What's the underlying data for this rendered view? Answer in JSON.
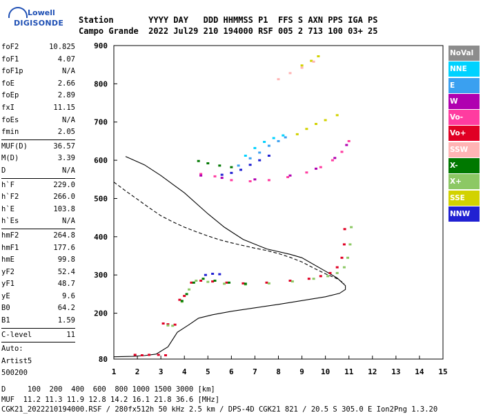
{
  "logo": {
    "line1": "Lowell",
    "line2": "DIGISONDE"
  },
  "header": {
    "line1": "Station       YYYY DAY   DDD HHMMSS P1  FFS S AXN PPS IGA PS",
    "line2": "Campo Grande  2022 Jul29 210 194000 RSF 005 2 713 100 03+ 25"
  },
  "params": {
    "group1": [
      {
        "label": "foF2",
        "value": "10.825"
      },
      {
        "label": "foF1",
        "value": "4.07"
      },
      {
        "label": "foF1p",
        "value": "N/A"
      },
      {
        "label": "foE",
        "value": "2.66"
      },
      {
        "label": "foEp",
        "value": "2.89"
      },
      {
        "label": "fxI",
        "value": "11.15"
      },
      {
        "label": "foEs",
        "value": "N/A"
      },
      {
        "label": "fmin",
        "value": "2.05"
      }
    ],
    "group2": [
      {
        "label": "MUF(D)",
        "value": "36.57"
      },
      {
        "label": "M(D)",
        "value": "3.39"
      },
      {
        "label": "D",
        "value": "N/A"
      }
    ],
    "group3": [
      {
        "label": "h`F",
        "value": "229.0"
      },
      {
        "label": "h`F2",
        "value": "266.0"
      },
      {
        "label": "h`E",
        "value": "103.8"
      },
      {
        "label": "h`Es",
        "value": "N/A"
      }
    ],
    "group4": [
      {
        "label": "hmF2",
        "value": "264.8"
      },
      {
        "label": "hmF1",
        "value": "177.6"
      },
      {
        "label": "hmE",
        "value": "99.8"
      },
      {
        "label": "yF2",
        "value": "52.4"
      },
      {
        "label": "yF1",
        "value": "48.7"
      },
      {
        "label": "yE",
        "value": "9.6"
      },
      {
        "label": "B0",
        "value": "64.2"
      },
      {
        "label": "B1",
        "value": "1.59"
      }
    ],
    "group5": [
      {
        "label": "C-level",
        "value": "11"
      }
    ],
    "autoscale": [
      "Auto:",
      "Artist5",
      "500200"
    ]
  },
  "legend": [
    {
      "label": "NoVal",
      "bg": "#8c8c8c",
      "fg": "#ffffff"
    },
    {
      "label": "NNE",
      "bg": "#00d2ff",
      "fg": "#ffffff"
    },
    {
      "label": "E",
      "bg": "#3aa0f0",
      "fg": "#ffffff"
    },
    {
      "label": "W",
      "bg": "#b000b0",
      "fg": "#ffffff"
    },
    {
      "label": "Vo-",
      "bg": "#ff3ca0",
      "fg": "#ffffff"
    },
    {
      "label": "Vo+",
      "bg": "#e00024",
      "fg": "#ffffff"
    },
    {
      "label": "SSW",
      "bg": "#ffb4b4",
      "fg": "#ffffff"
    },
    {
      "label": "X-",
      "bg": "#007800",
      "fg": "#ffffff"
    },
    {
      "label": "X+",
      "bg": "#8cc864",
      "fg": "#ffffff"
    },
    {
      "label": "SSE",
      "bg": "#d2d200",
      "fg": "#ffffff"
    },
    {
      "label": "NNW",
      "bg": "#2020d2",
      "fg": "#ffffff"
    }
  ],
  "footer": {
    "line1": "D     100  200  400  600  800 1000 1500 3000 [km]",
    "line2": "MUF  11.2 11.3 11.9 12.8 14.2 16.1 21.8 36.6 [MHz]",
    "line3": "CGK21_2022210194000.RSF / 280fx512h 50 kHz 2.5 km / DPS-4D CGK21 821 / 20.5 S 305.0 E Ion2Png 1.3.20"
  },
  "chart_data": {
    "type": "scatter",
    "xlim": [
      1,
      15
    ],
    "ylim": [
      80,
      900
    ],
    "x_ticks": [
      1,
      2,
      3,
      4,
      5,
      6,
      7,
      8,
      9,
      10,
      11,
      12,
      13,
      14,
      15
    ],
    "y_ticks": [
      80,
      200,
      300,
      400,
      500,
      600,
      700,
      800,
      900
    ],
    "grid": false,
    "legend_position": "right",
    "series": [
      {
        "name": "Vo+",
        "color": "#e00024",
        "points": [
          [
            1.9,
            91
          ],
          [
            2.2,
            90
          ],
          [
            2.5,
            91
          ],
          [
            2.9,
            91
          ],
          [
            3.2,
            90
          ],
          [
            3.1,
            173
          ],
          [
            3.3,
            171
          ],
          [
            3.6,
            170
          ],
          [
            3.8,
            235
          ],
          [
            4.0,
            245
          ],
          [
            4.3,
            280
          ],
          [
            4.7,
            285
          ],
          [
            5.2,
            283
          ],
          [
            5.8,
            280
          ],
          [
            6.5,
            278
          ],
          [
            7.5,
            280
          ],
          [
            8.5,
            285
          ],
          [
            9.3,
            290
          ],
          [
            9.8,
            297
          ],
          [
            10.2,
            305
          ],
          [
            10.5,
            320
          ],
          [
            10.7,
            345
          ],
          [
            10.8,
            380
          ],
          [
            10.82,
            420
          ]
        ]
      },
      {
        "name": "X+",
        "color": "#8cc864",
        "points": [
          [
            3.3,
            168
          ],
          [
            3.5,
            167
          ],
          [
            3.9,
            230
          ],
          [
            4.2,
            262
          ],
          [
            4.5,
            285
          ],
          [
            5.0,
            282
          ],
          [
            5.7,
            277
          ],
          [
            6.6,
            275
          ],
          [
            7.6,
            278
          ],
          [
            8.6,
            283
          ],
          [
            9.5,
            290
          ],
          [
            10.1,
            297
          ],
          [
            10.5,
            305
          ],
          [
            10.8,
            320
          ],
          [
            10.95,
            345
          ],
          [
            11.05,
            380
          ],
          [
            11.1,
            425
          ]
        ]
      },
      {
        "name": "X-",
        "color": "#007800",
        "points": [
          [
            3.9,
            232
          ],
          [
            4.1,
            250
          ],
          [
            4.4,
            280
          ],
          [
            4.8,
            290
          ],
          [
            5.3,
            285
          ],
          [
            5.9,
            280
          ],
          [
            6.6,
            277
          ],
          [
            4.6,
            598
          ],
          [
            5.0,
            592
          ],
          [
            5.5,
            586
          ],
          [
            6.0,
            582
          ]
        ]
      },
      {
        "name": "NNW",
        "color": "#2020d2",
        "points": [
          [
            4.9,
            300
          ],
          [
            5.2,
            303
          ],
          [
            5.5,
            302
          ],
          [
            5.6,
            562
          ],
          [
            6.0,
            567
          ],
          [
            6.4,
            575
          ],
          [
            6.8,
            588
          ],
          [
            7.2,
            600
          ],
          [
            7.6,
            612
          ]
        ]
      },
      {
        "name": "E",
        "color": "#3aa0f0",
        "points": [
          [
            6.3,
            586
          ],
          [
            6.8,
            605
          ],
          [
            7.2,
            620
          ],
          [
            7.6,
            638
          ],
          [
            8.0,
            650
          ],
          [
            8.3,
            660
          ]
        ]
      },
      {
        "name": "NNE",
        "color": "#00d2ff",
        "points": [
          [
            6.6,
            612
          ],
          [
            7.0,
            632
          ],
          [
            7.4,
            648
          ],
          [
            7.8,
            658
          ],
          [
            8.2,
            665
          ]
        ]
      },
      {
        "name": "SSE",
        "color": "#d2d200",
        "points": [
          [
            8.8,
            668
          ],
          [
            9.2,
            682
          ],
          [
            9.6,
            695
          ],
          [
            10.0,
            705
          ],
          [
            10.5,
            718
          ],
          [
            9.0,
            848
          ],
          [
            9.4,
            860
          ],
          [
            9.7,
            872
          ]
        ]
      },
      {
        "name": "Vo-",
        "color": "#ff3ca0",
        "points": [
          [
            4.7,
            564
          ],
          [
            5.3,
            558
          ],
          [
            6.0,
            548
          ],
          [
            6.8,
            545
          ],
          [
            7.6,
            548
          ],
          [
            8.4,
            556
          ],
          [
            9.2,
            568
          ],
          [
            9.8,
            582
          ],
          [
            10.3,
            600
          ],
          [
            10.7,
            622
          ],
          [
            11.0,
            650
          ]
        ]
      },
      {
        "name": "W",
        "color": "#b000b0",
        "points": [
          [
            4.7,
            560
          ],
          [
            5.6,
            554
          ],
          [
            7.0,
            550
          ],
          [
            8.5,
            560
          ],
          [
            9.6,
            578
          ],
          [
            10.4,
            606
          ],
          [
            10.9,
            640
          ]
        ]
      },
      {
        "name": "SSW",
        "color": "#ffb4b4",
        "points": [
          [
            8.0,
            812
          ],
          [
            8.5,
            828
          ],
          [
            9.0,
            842
          ],
          [
            9.5,
            858
          ]
        ]
      }
    ],
    "lines": [
      {
        "style": "solid",
        "color": "#000000",
        "points": [
          [
            1.0,
            86
          ],
          [
            1.8,
            87
          ],
          [
            2.3,
            89
          ],
          [
            2.8,
            93
          ],
          [
            3.3,
            112
          ],
          [
            3.7,
            150
          ],
          [
            4.2,
            170
          ],
          [
            4.6,
            187
          ],
          [
            5.2,
            196
          ],
          [
            6.0,
            205
          ],
          [
            7.0,
            214
          ],
          [
            8.0,
            223
          ],
          [
            9.0,
            233
          ],
          [
            10.0,
            243
          ],
          [
            10.6,
            252
          ],
          [
            10.85,
            262
          ],
          [
            10.85,
            272
          ],
          [
            10.5,
            292
          ],
          [
            10.0,
            310
          ],
          [
            9.0,
            345
          ],
          [
            8.5,
            354
          ],
          [
            7.5,
            368
          ],
          [
            6.5,
            393
          ],
          [
            5.7,
            425
          ],
          [
            5.0,
            460
          ],
          [
            4.0,
            515
          ],
          [
            3.0,
            560
          ],
          [
            2.3,
            588
          ],
          [
            1.5,
            610
          ]
        ]
      },
      {
        "style": "dashed",
        "color": "#000000",
        "points": [
          [
            1.0,
            543
          ],
          [
            1.5,
            520
          ],
          [
            2.0,
            498
          ],
          [
            2.5,
            476
          ],
          [
            3.0,
            455
          ],
          [
            3.5,
            439
          ],
          [
            4.0,
            425
          ],
          [
            4.5,
            413
          ],
          [
            5.0,
            402
          ],
          [
            5.5,
            392
          ],
          [
            6.0,
            384
          ],
          [
            6.5,
            377
          ],
          [
            7.0,
            370
          ],
          [
            7.5,
            364
          ],
          [
            8.0,
            356
          ],
          [
            8.5,
            346
          ],
          [
            9.0,
            334
          ],
          [
            9.5,
            318
          ],
          [
            10.0,
            303
          ],
          [
            10.5,
            290
          ],
          [
            10.8,
            278
          ]
        ]
      }
    ]
  }
}
